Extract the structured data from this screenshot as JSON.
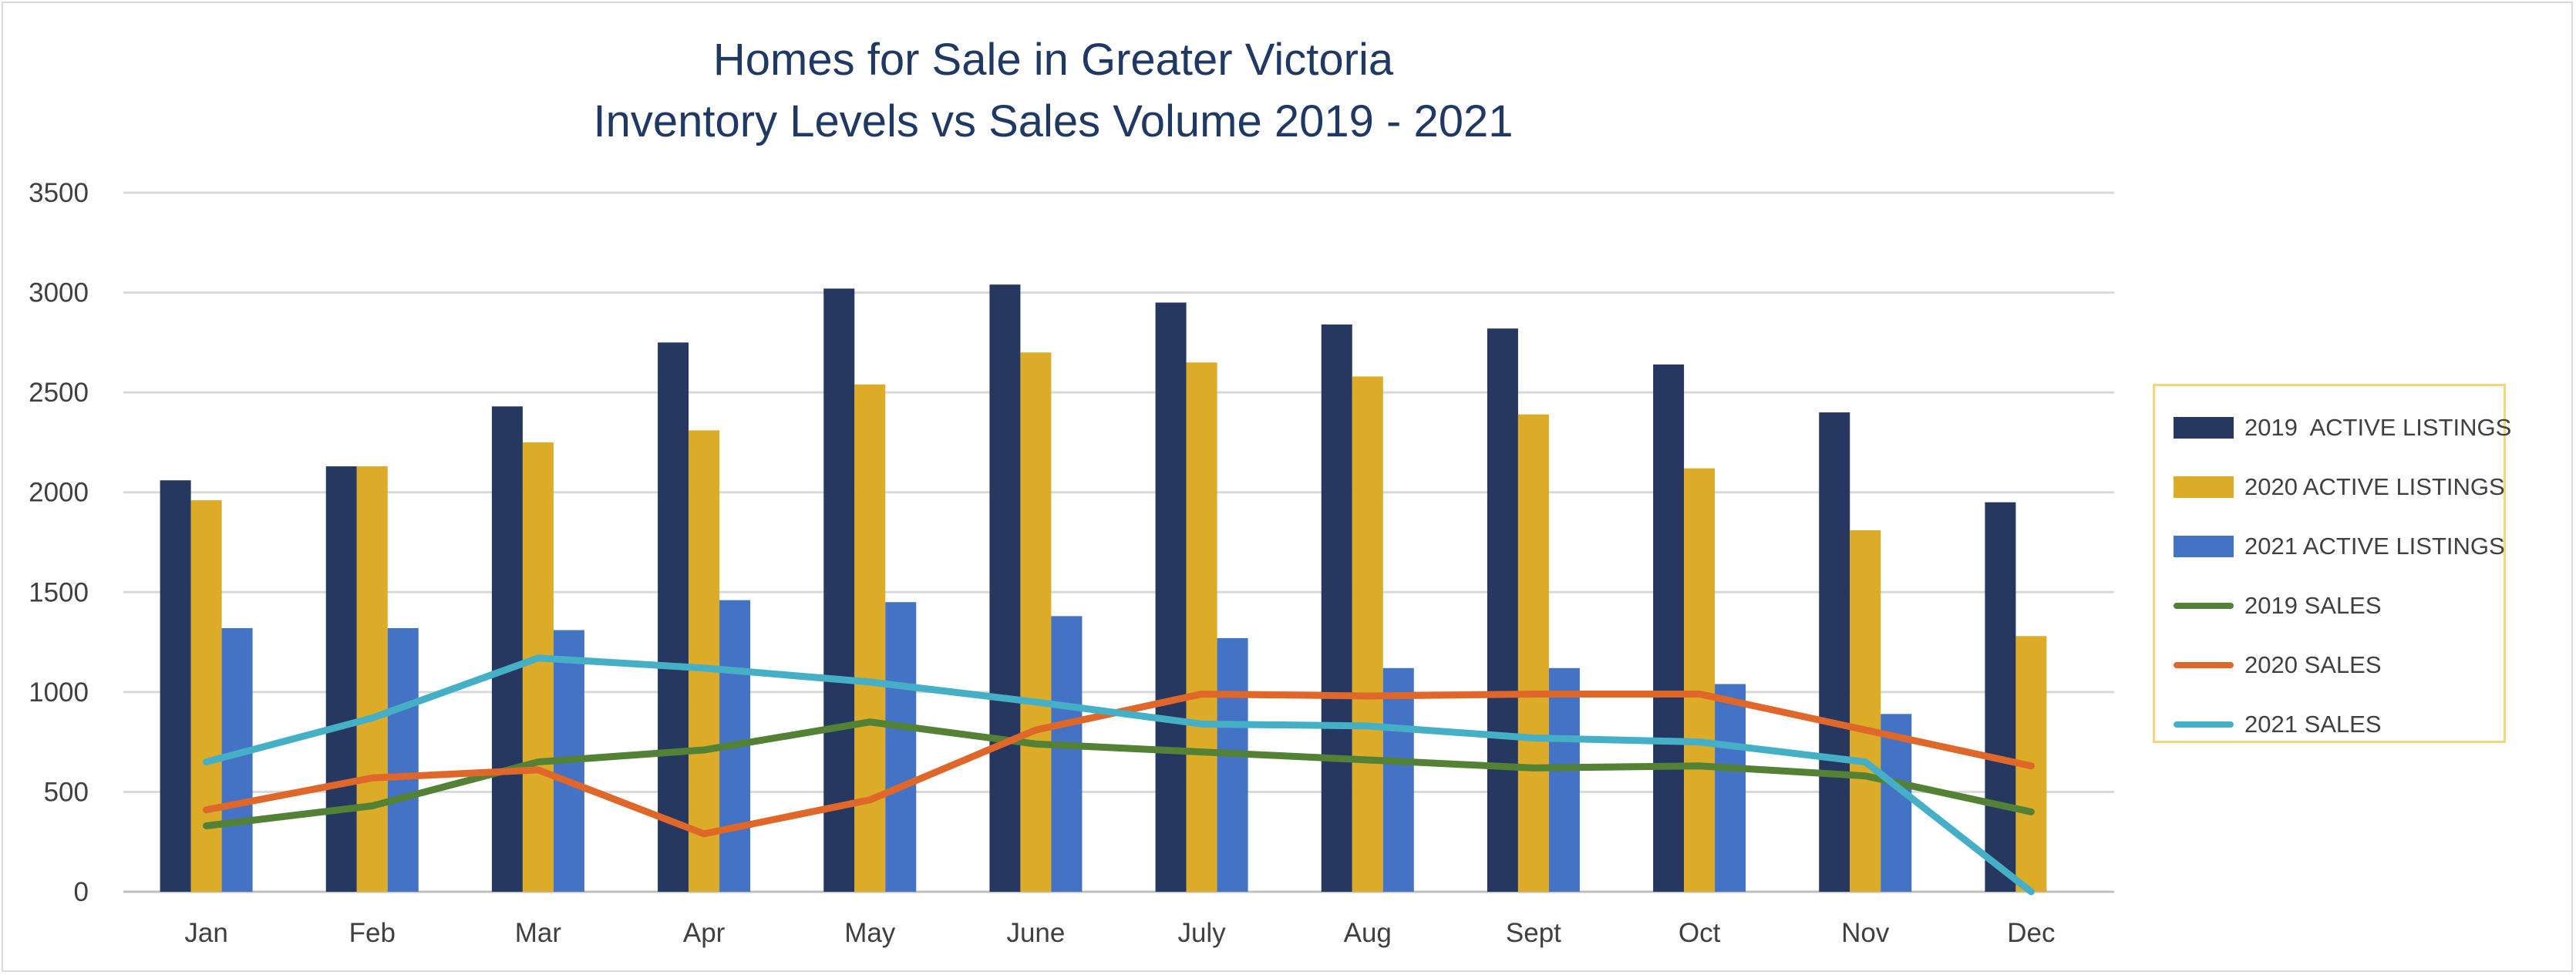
{
  "chart_data": {
    "type": "bar",
    "title_line1": "Homes for Sale in Greater Victoria",
    "title_line2": "Inventory Levels vs Sales Volume 2019 - 2021",
    "categories": [
      "Jan",
      "Feb",
      "Mar",
      "Apr",
      "May",
      "June",
      "July",
      "Aug",
      "Sept",
      "Oct",
      "Nov",
      "Dec"
    ],
    "ylim": [
      0,
      3500
    ],
    "yticks": [
      "0",
      "500",
      "1000",
      "1500",
      "2000",
      "2500",
      "3000",
      "3500"
    ],
    "grid": true,
    "legend_position": "right",
    "bar_series": [
      {
        "name": "2019  ACTIVE LISTINGS",
        "color": "#263760",
        "values": [
          2060,
          2130,
          2430,
          2750,
          3020,
          3040,
          2950,
          2840,
          2820,
          2640,
          2400,
          1950
        ]
      },
      {
        "name": "2020 ACTIVE LISTINGS",
        "color": "#dcab27",
        "values": [
          1960,
          2130,
          2250,
          2310,
          2540,
          2700,
          2650,
          2580,
          2390,
          2120,
          1810,
          1280
        ]
      },
      {
        "name": "2021 ACTIVE LISTINGS",
        "color": "#4472c4",
        "values": [
          1320,
          1320,
          1310,
          1460,
          1450,
          1380,
          1270,
          1120,
          1120,
          1040,
          890,
          null
        ]
      }
    ],
    "line_series": [
      {
        "name": "2019 SALES",
        "color": "#538135",
        "values": [
          330,
          430,
          650,
          710,
          850,
          740,
          700,
          660,
          620,
          630,
          580,
          400
        ]
      },
      {
        "name": "2020 SALES",
        "color": "#e0672a",
        "values": [
          410,
          570,
          610,
          290,
          460,
          810,
          990,
          980,
          990,
          990,
          810,
          630
        ]
      },
      {
        "name": "2021 SALES",
        "color": "#45afc6",
        "values": [
          650,
          870,
          1170,
          1120,
          1050,
          950,
          840,
          830,
          770,
          750,
          650,
          0
        ]
      }
    ]
  }
}
